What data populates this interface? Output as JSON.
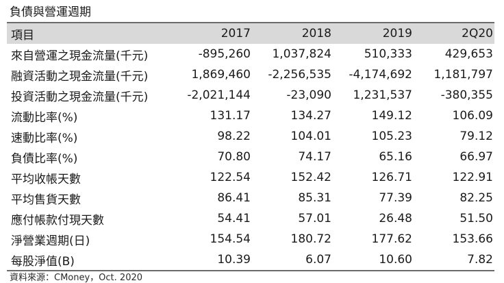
{
  "title": "負債與營運週期",
  "header": [
    "項目",
    "2017",
    "2018",
    "2019",
    "2Q20"
  ],
  "rows": [
    {
      "label": "來自營運之現金流量(千元)",
      "values": [
        "-895,260",
        "1,037,824",
        "510,333",
        "429,653"
      ]
    },
    {
      "label": "融資活動之現金流量(千元)",
      "values": [
        "1,869,460",
        "-2,256,535",
        "-4,174,692",
        "1,181,797"
      ]
    },
    {
      "label": "投資活動之現金流量(千元)",
      "values": [
        "-2,021,144",
        "-23,090",
        "1,231,537",
        "-380,355"
      ]
    },
    {
      "label": "流動比率(%)",
      "values": [
        "131.17",
        "134.27",
        "149.12",
        "106.09"
      ]
    },
    {
      "label": "速動比率(%)",
      "values": [
        "98.22",
        "104.01",
        "105.23",
        "79.12"
      ]
    },
    {
      "label": "負債比率(%)",
      "values": [
        "70.80",
        "74.17",
        "65.16",
        "66.97"
      ]
    },
    {
      "label": "平均收帳天數",
      "values": [
        "122.54",
        "152.42",
        "126.71",
        "122.91"
      ]
    },
    {
      "label": "平均售貨天數",
      "values": [
        "86.41",
        "85.31",
        "77.39",
        "82.25"
      ]
    },
    {
      "label": "應付帳款付現天數",
      "values": [
        "54.41",
        "57.01",
        "26.48",
        "51.50"
      ]
    },
    {
      "label": "淨營業週期(日)",
      "values": [
        "154.54",
        "180.72",
        "177.62",
        "153.66"
      ]
    },
    {
      "label": "每股淨值(B)",
      "values": [
        "10.39",
        "6.07",
        "10.60",
        "7.82"
      ]
    }
  ],
  "source": "資料來源：CMoney，Oct. 2020"
}
